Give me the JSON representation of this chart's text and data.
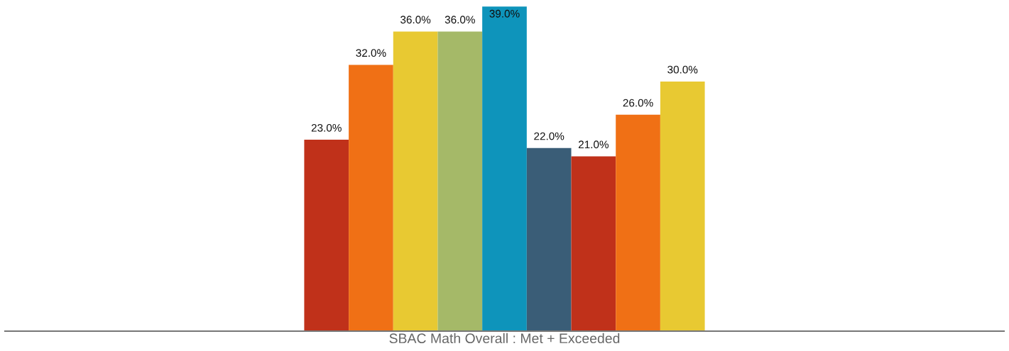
{
  "chart_data": {
    "type": "bar",
    "xlabel": "SBAC Math Overall : Met + Exceeded",
    "categories": [
      null,
      null,
      null,
      null,
      null,
      null,
      null,
      null,
      null
    ],
    "values": [
      23,
      32,
      36,
      36,
      39,
      22,
      21,
      26,
      30
    ],
    "colors": [
      "#c0311a",
      "#f07015",
      "#e8c932",
      "#a5b968",
      "#0e94bb",
      "#3a5d77",
      "#c0311a",
      "#f07015",
      "#e8c932"
    ],
    "value_labels": [
      "23.0%",
      "32.0%",
      "36.0%",
      "36.0%",
      "39.0%",
      "22.0%",
      "21.0%",
      "26.0%",
      "30.0%"
    ],
    "grid": false
  }
}
